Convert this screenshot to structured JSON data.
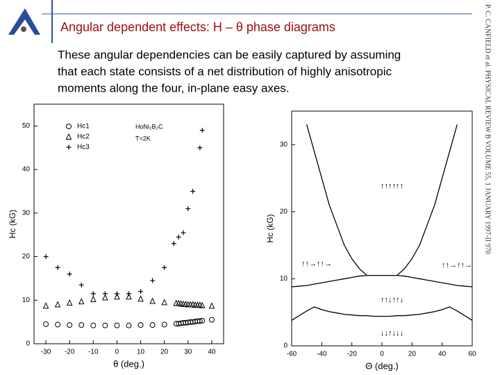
{
  "header": {
    "title": "Angular dependent effects:  H – θ phase diagrams"
  },
  "body": {
    "lines": [
      "These angular dependencies can be easily captured by assuming",
      "that each state consists of a net distribution of highly anisotropic",
      "moments along the four, in-plane easy axes."
    ]
  },
  "side_caption": "P. C. CANFIELD et al.   PHYSICAL REVIEW B VOLUME 55, 1 JANUARY 1997-II   970",
  "chart_data": [
    {
      "type": "scatter",
      "xlabel": "θ (deg.)",
      "ylabel": "Hc (kG)",
      "annotations": [
        "HoNi₂B₂C",
        "T=2K"
      ],
      "xlim": [
        -35,
        45
      ],
      "ylim": [
        0,
        55
      ],
      "xticks": [
        -30,
        -20,
        -10,
        0,
        10,
        20,
        30,
        40
      ],
      "yticks": [
        0,
        10,
        20,
        30,
        40,
        50
      ],
      "legend": "upper left",
      "series": [
        {
          "name": "Hc1",
          "color": "#000000",
          "marker": "circle",
          "x": [
            -30,
            -25,
            -20,
            -15,
            -10,
            -5,
            0,
            5,
            10,
            15,
            20,
            25,
            26,
            27,
            28,
            29,
            30,
            31,
            32,
            33,
            34,
            35,
            36,
            40
          ],
          "values": [
            4.5,
            4.4,
            4.3,
            4.3,
            4.2,
            4.2,
            4.2,
            4.2,
            4.3,
            4.3,
            4.4,
            4.6,
            4.6,
            4.7,
            4.8,
            4.8,
            4.9,
            5.0,
            5.0,
            5.1,
            5.2,
            5.2,
            5.3,
            5.5
          ]
        },
        {
          "name": "Hc2",
          "color": "#000000",
          "marker": "triangle",
          "x": [
            -30,
            -25,
            -20,
            -15,
            -10,
            -5,
            0,
            5,
            10,
            15,
            20,
            25,
            26,
            27,
            28,
            29,
            30,
            31,
            32,
            33,
            34,
            35,
            36,
            40
          ],
          "values": [
            8.7,
            9.0,
            9.4,
            9.7,
            10.2,
            10.6,
            10.8,
            10.8,
            10.3,
            9.8,
            9.5,
            9.3,
            9.3,
            9.2,
            9.1,
            9.1,
            9.0,
            9.0,
            9.0,
            8.9,
            8.9,
            8.9,
            8.8,
            8.7
          ]
        },
        {
          "name": "Hc3",
          "color": "#000000",
          "marker": "plus",
          "x": [
            -30,
            -25,
            -20,
            -15,
            -10,
            -5,
            0,
            5,
            10,
            15,
            20,
            24,
            26,
            28,
            30,
            32,
            35,
            36
          ],
          "values": [
            20,
            17.5,
            16,
            13.5,
            11.5,
            11.5,
            11.5,
            11.5,
            12,
            14.5,
            17.5,
            23,
            24.5,
            25.5,
            31,
            35,
            45,
            49
          ]
        }
      ]
    },
    {
      "type": "line",
      "xlabel": "Θ (deg.)",
      "ylabel": "Hc (kG)",
      "annotations": [
        "↑↑↑↑↑↑",
        "↑↑→↑↑→",
        "↑↑→↑↑→",
        "↑↑↓↑↑↓",
        "↓↓↑↓↓↓"
      ],
      "xlim": [
        -60,
        60
      ],
      "ylim": [
        0,
        35
      ],
      "xticks": [
        -60,
        -40,
        -20,
        0,
        20,
        40,
        60
      ],
      "yticks": [
        0,
        10,
        20,
        30
      ],
      "x": [
        -60,
        -55,
        -50,
        -45,
        -40,
        -35,
        -30,
        -25,
        -20,
        -15,
        -10,
        -5,
        0,
        5,
        10,
        15,
        20,
        25,
        30,
        35,
        40,
        45,
        50,
        55,
        60
      ],
      "series": [
        {
          "color": "#000000",
          "values": [
            null,
            null,
            33,
            29,
            25,
            21,
            18,
            15,
            13,
            11.5,
            10.5,
            10.5,
            10.5,
            10.5,
            10.5,
            11.5,
            13,
            15,
            18,
            21,
            25,
            29,
            33,
            null,
            null
          ]
        },
        {
          "color": "#000000",
          "values": [
            8.8,
            8.9,
            9.0,
            9.2,
            9.4,
            9.6,
            9.8,
            10.0,
            10.2,
            10.4,
            10.5,
            null,
            null,
            null,
            10.5,
            10.4,
            10.2,
            10.0,
            9.8,
            9.6,
            9.4,
            9.2,
            9.0,
            8.9,
            8.8
          ]
        },
        {
          "color": "#000000",
          "values": [
            3.8,
            4.5,
            5.2,
            5.8,
            5.4,
            5.1,
            4.9,
            4.7,
            4.6,
            4.5,
            4.5,
            4.4,
            4.4,
            4.4,
            4.5,
            4.5,
            4.6,
            4.7,
            4.9,
            5.1,
            5.4,
            5.8,
            5.2,
            4.5,
            3.8
          ]
        }
      ]
    }
  ]
}
